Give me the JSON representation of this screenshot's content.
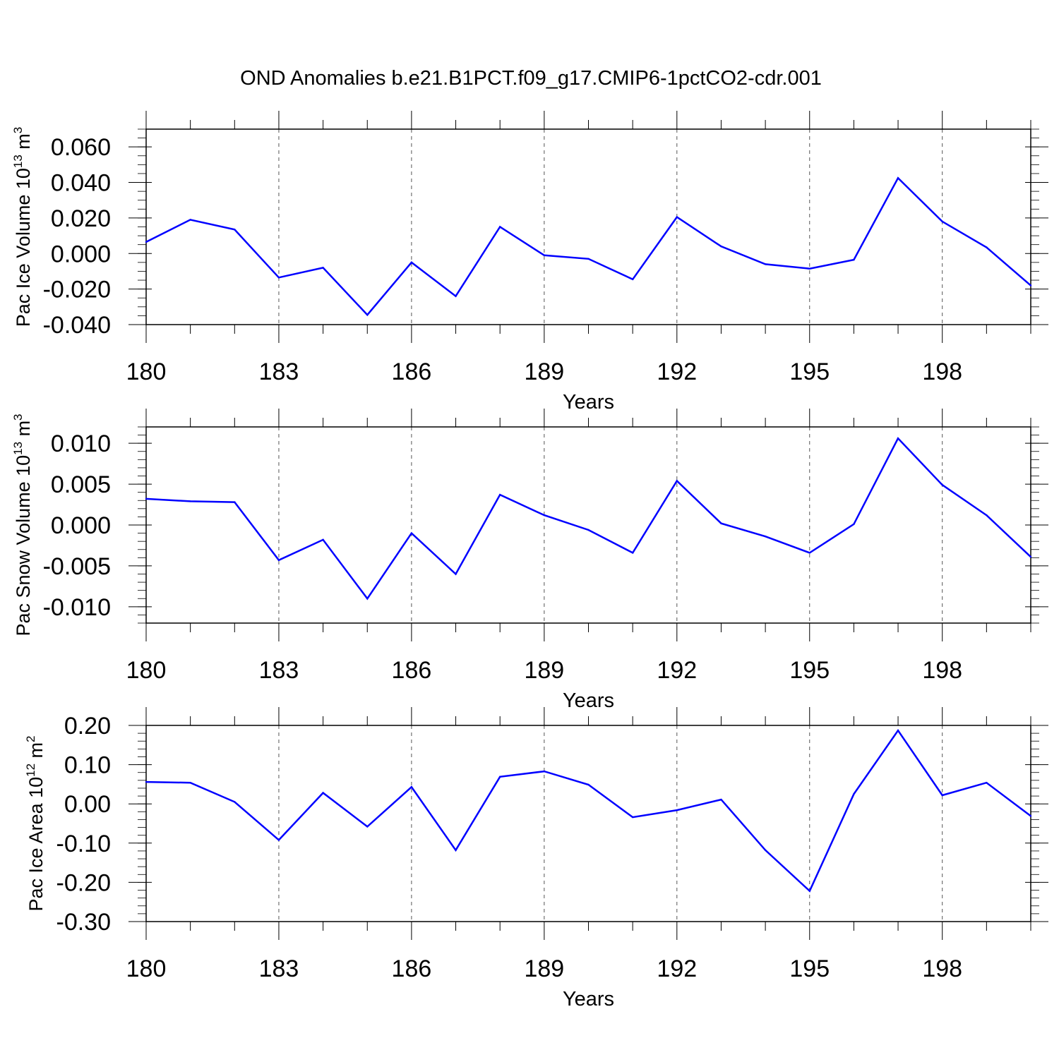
{
  "title": "OND Anomalies b.e21.B1PCT.f09_g17.CMIP6-1pctCO2-cdr.001",
  "colors": {
    "line": "#0000ff",
    "axis": "#000000",
    "grid": "#555555"
  },
  "chart_data": [
    {
      "type": "line",
      "xlabel": "Years",
      "ylabel": {
        "text": "Pac Ice Volume 10",
        "exponent": "13",
        "unit": "m",
        "unit_exponent": "3"
      },
      "xlim": [
        180,
        200
      ],
      "ylim": [
        -0.04,
        0.07
      ],
      "x_ticks": [
        180,
        183,
        186,
        189,
        192,
        195,
        198
      ],
      "y_ticks": [
        "0.060",
        "0.040",
        "0.020",
        "0.000",
        "-0.020",
        "-0.040"
      ],
      "y_tick_values": [
        0.06,
        0.04,
        0.02,
        0.0,
        -0.02,
        -0.04
      ],
      "y_minor_step": 0.005,
      "grid": "vertical dashed at major x ticks",
      "x": [
        180,
        181,
        182,
        183,
        184,
        185,
        186,
        187,
        188,
        189,
        190,
        191,
        192,
        193,
        194,
        195,
        196,
        197,
        198,
        199,
        200
      ],
      "values": [
        0.0065,
        0.019,
        0.0135,
        -0.0135,
        -0.008,
        -0.0345,
        -0.005,
        -0.024,
        0.015,
        -0.001,
        -0.003,
        -0.0145,
        0.0205,
        0.004,
        -0.006,
        -0.0085,
        -0.0035,
        0.0425,
        0.018,
        0.0035,
        -0.018
      ]
    },
    {
      "type": "line",
      "xlabel": "Years",
      "ylabel": {
        "text": "Pac Snow Volume 10",
        "exponent": "13",
        "unit": "m",
        "unit_exponent": "3"
      },
      "xlim": [
        180,
        200
      ],
      "ylim": [
        -0.012,
        0.012
      ],
      "x_ticks": [
        180,
        183,
        186,
        189,
        192,
        195,
        198
      ],
      "y_ticks": [
        "0.010",
        "0.005",
        "0.000",
        "-0.005",
        "-0.010"
      ],
      "y_tick_values": [
        0.01,
        0.005,
        0.0,
        -0.005,
        -0.01
      ],
      "y_minor_step": 0.001,
      "grid": "vertical dashed at major x ticks",
      "x": [
        180,
        181,
        182,
        183,
        184,
        185,
        186,
        187,
        188,
        189,
        190,
        191,
        192,
        193,
        194,
        195,
        196,
        197,
        198,
        199,
        200
      ],
      "values": [
        0.0032,
        0.0029,
        0.0028,
        -0.0043,
        -0.0018,
        -0.009,
        -0.001,
        -0.006,
        0.0037,
        0.0012,
        -0.0006,
        -0.0034,
        0.0054,
        0.0002,
        -0.0014,
        -0.0034,
        0.0001,
        0.0106,
        0.0049,
        0.0012,
        -0.0039
      ]
    },
    {
      "type": "line",
      "xlabel": "Years",
      "ylabel": {
        "text": "Pac Ice Area 10",
        "exponent": "12",
        "unit": "m",
        "unit_exponent": "2"
      },
      "xlim": [
        180,
        200
      ],
      "ylim": [
        -0.3,
        0.2
      ],
      "x_ticks": [
        180,
        183,
        186,
        189,
        192,
        195,
        198
      ],
      "y_ticks": [
        "0.20",
        "0.10",
        "0.00",
        "-0.10",
        "-0.20",
        "-0.30"
      ],
      "y_tick_values": [
        0.2,
        0.1,
        0.0,
        -0.1,
        -0.2,
        -0.3
      ],
      "y_minor_step": 0.02,
      "grid": "vertical dashed at major x ticks",
      "x": [
        180,
        181,
        182,
        183,
        184,
        185,
        186,
        187,
        188,
        189,
        190,
        191,
        192,
        193,
        194,
        195,
        196,
        197,
        198,
        199,
        200
      ],
      "values": [
        0.056,
        0.054,
        0.005,
        -0.092,
        0.028,
        -0.058,
        0.043,
        -0.118,
        0.069,
        0.083,
        0.049,
        -0.034,
        -0.016,
        0.011,
        -0.118,
        -0.222,
        0.025,
        0.187,
        0.022,
        0.054,
        -0.031
      ]
    }
  ]
}
